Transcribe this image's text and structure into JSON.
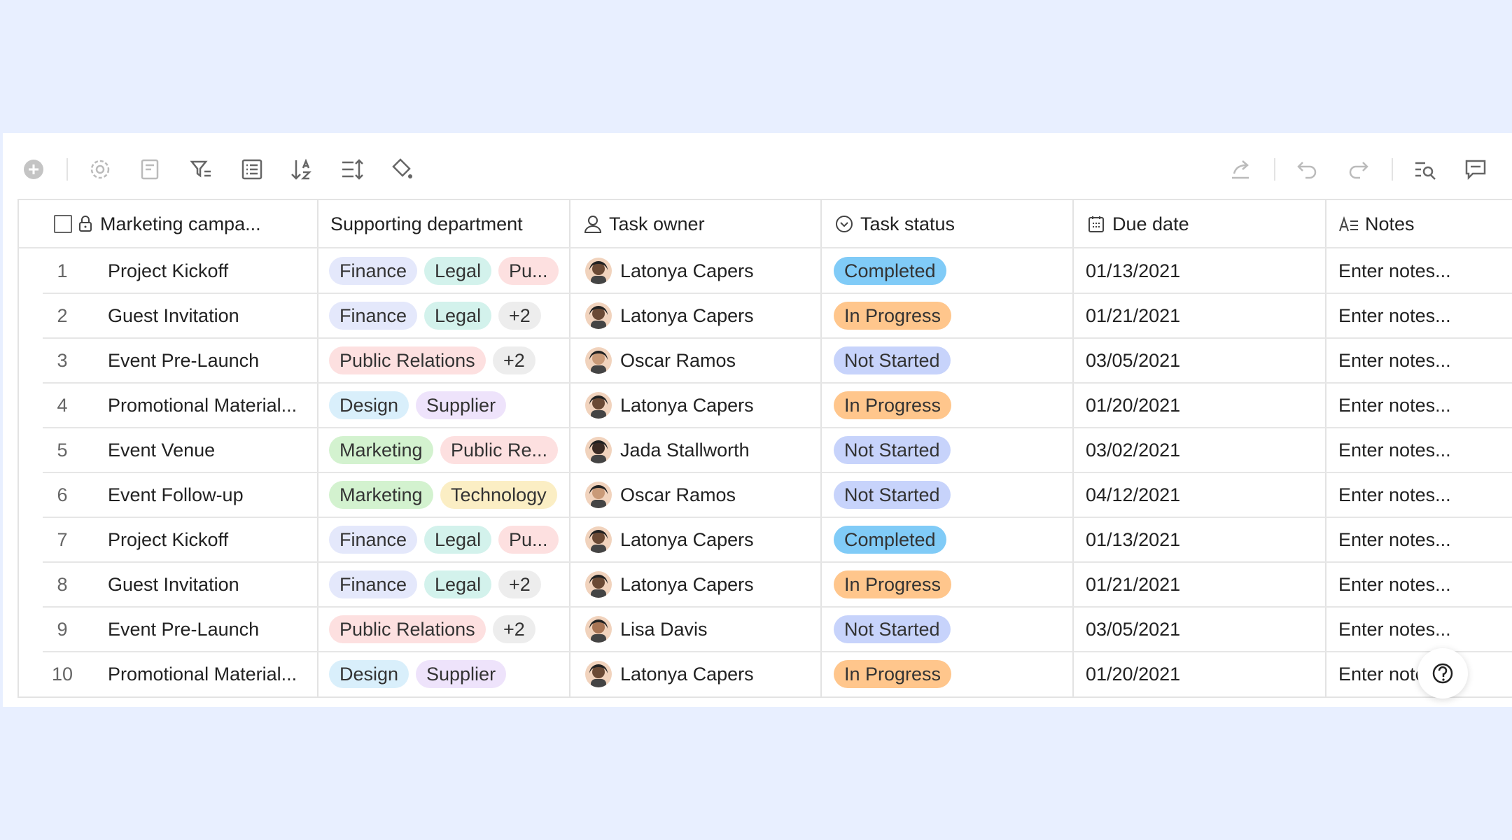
{
  "table": {
    "columns": [
      "Marketing campa...",
      "Supporting department",
      "Task owner",
      "Task status",
      "Due date",
      "Notes"
    ],
    "rows": [
      {
        "number": "1",
        "name": "Project Kickoff",
        "departments": [
          {
            "text": "Finance",
            "color": "#e4e8fb"
          },
          {
            "text": "Legal",
            "color": "#d3f2ec"
          },
          {
            "text": "Pu...",
            "color": "#fde0e0"
          }
        ],
        "owner": "Latonya Capers",
        "status": {
          "text": "Completed",
          "color": "#80cbf7"
        },
        "due": "01/13/2021",
        "notes": "Enter notes..."
      },
      {
        "number": "2",
        "name": "Guest Invitation",
        "departments": [
          {
            "text": "Finance",
            "color": "#e4e8fb"
          },
          {
            "text": "Legal",
            "color": "#d3f2ec"
          },
          {
            "text": "+2",
            "color": "#ededed"
          }
        ],
        "owner": "Latonya Capers",
        "status": {
          "text": "In Progress",
          "color": "#ffc68c"
        },
        "due": "01/21/2021",
        "notes": "Enter notes..."
      },
      {
        "number": "3",
        "name": "Event Pre-Launch",
        "departments": [
          {
            "text": "Public Relations",
            "color": "#fde0e0"
          },
          {
            "text": "+2",
            "color": "#ededed"
          }
        ],
        "owner": "Oscar Ramos",
        "status": {
          "text": "Not Started",
          "color": "#c7d3fb"
        },
        "due": "03/05/2021",
        "notes": "Enter notes..."
      },
      {
        "number": "4",
        "name": "Promotional Material...",
        "departments": [
          {
            "text": "Design",
            "color": "#d9effb"
          },
          {
            "text": "Supplier",
            "color": "#eee3fb"
          }
        ],
        "owner": "Latonya Capers",
        "status": {
          "text": "In Progress",
          "color": "#ffc68c"
        },
        "due": "01/20/2021",
        "notes": "Enter notes..."
      },
      {
        "number": "5",
        "name": "Event Venue",
        "departments": [
          {
            "text": "Marketing",
            "color": "#d3f2cf"
          },
          {
            "text": "Public Re...",
            "color": "#fde0e0"
          }
        ],
        "owner": "Jada Stallworth",
        "status": {
          "text": "Not Started",
          "color": "#c7d3fb"
        },
        "due": "03/02/2021",
        "notes": "Enter notes..."
      },
      {
        "number": "6",
        "name": "Event Follow-up",
        "departments": [
          {
            "text": "Marketing",
            "color": "#d3f2cf"
          },
          {
            "text": "Technology",
            "color": "#fbeec4"
          }
        ],
        "owner": "Oscar Ramos",
        "status": {
          "text": "Not Started",
          "color": "#c7d3fb"
        },
        "due": "04/12/2021",
        "notes": "Enter notes..."
      },
      {
        "number": "7",
        "name": "Project Kickoff",
        "departments": [
          {
            "text": "Finance",
            "color": "#e4e8fb"
          },
          {
            "text": "Legal",
            "color": "#d3f2ec"
          },
          {
            "text": "Pu...",
            "color": "#fde0e0"
          }
        ],
        "owner": "Latonya Capers",
        "status": {
          "text": "Completed",
          "color": "#80cbf7"
        },
        "due": "01/13/2021",
        "notes": "Enter notes..."
      },
      {
        "number": "8",
        "name": "Guest Invitation",
        "departments": [
          {
            "text": "Finance",
            "color": "#e4e8fb"
          },
          {
            "text": "Legal",
            "color": "#d3f2ec"
          },
          {
            "text": "+2",
            "color": "#ededed"
          }
        ],
        "owner": "Latonya Capers",
        "status": {
          "text": "In Progress",
          "color": "#ffc68c"
        },
        "due": "01/21/2021",
        "notes": "Enter notes..."
      },
      {
        "number": "9",
        "name": "Event Pre-Launch",
        "departments": [
          {
            "text": "Public Relations",
            "color": "#fde0e0"
          },
          {
            "text": "+2",
            "color": "#ededed"
          }
        ],
        "owner": "Lisa Davis",
        "status": {
          "text": "Not Started",
          "color": "#c7d3fb"
        },
        "due": "03/05/2021",
        "notes": "Enter notes..."
      },
      {
        "number": "10",
        "name": "Promotional Material...",
        "departments": [
          {
            "text": "Design",
            "color": "#d9effb"
          },
          {
            "text": "Supplier",
            "color": "#eee3fb"
          }
        ],
        "owner": "Latonya Capers",
        "status": {
          "text": "In Progress",
          "color": "#ffc68c"
        },
        "due": "01/20/2021",
        "notes": "Enter notes..."
      }
    ]
  }
}
